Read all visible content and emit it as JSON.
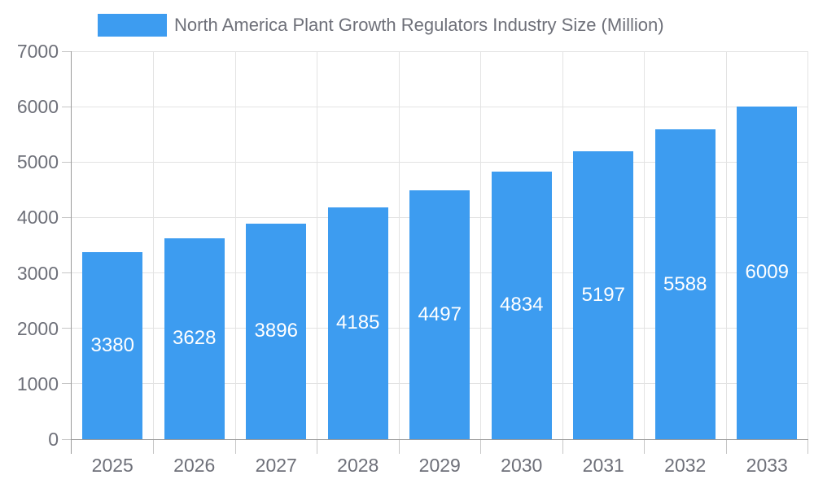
{
  "chart_data": {
    "type": "bar",
    "title": "North America Plant Growth Regulators Industry Size (Million)",
    "legend_position": "top",
    "categories": [
      "2025",
      "2026",
      "2027",
      "2028",
      "2029",
      "2030",
      "2031",
      "2032",
      "2033"
    ],
    "series": [
      {
        "name": "North America Plant Growth Regulators Industry Size (Million)",
        "values": [
          3380,
          3628,
          3896,
          4185,
          4497,
          4834,
          5197,
          5588,
          6009
        ]
      }
    ],
    "xlabel": "",
    "ylabel": "",
    "ylim": [
      0,
      7000
    ],
    "ytick_step": 1000,
    "ytick_labels": [
      "0",
      "1000",
      "2000",
      "3000",
      "4000",
      "5000",
      "6000",
      "7000"
    ],
    "grid": true,
    "value_labels_shown": true,
    "colors": {
      "bar": "#3d9cf0",
      "value_label": "#ffffff",
      "axis_text": "#6e7079",
      "legend_text": "#6e7079",
      "grid_line": "#e3e3e3",
      "axis_line": "#9a9a9a",
      "tick_mark": "#c6c6c6"
    }
  }
}
